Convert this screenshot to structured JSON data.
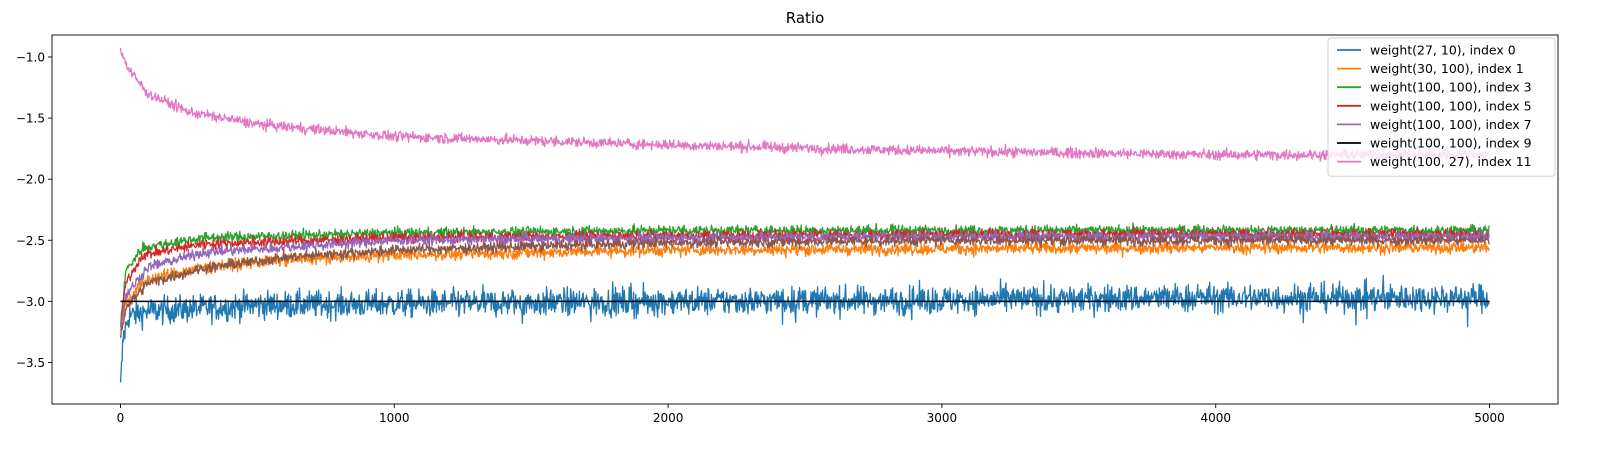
{
  "chart_data": {
    "type": "line",
    "title": "Ratio",
    "xlabel": "",
    "ylabel": "",
    "xlim": [
      -250,
      5250
    ],
    "ylim": [
      -3.84,
      -0.82
    ],
    "xticks": [
      0,
      1000,
      2000,
      3000,
      4000,
      5000
    ],
    "xtick_labels": [
      "0",
      "1000",
      "2000",
      "3000",
      "4000",
      "5000"
    ],
    "yticks": [
      -3.5,
      -3.0,
      -2.5,
      -2.0,
      -1.5,
      -1.0
    ],
    "ytick_labels": [
      "−3.5",
      "−3.0",
      "−2.5",
      "−2.0",
      "−1.5",
      "−1.0"
    ],
    "grid": false,
    "legend_position": "top-right",
    "n_points": 5000,
    "series": [
      {
        "name": "weight(27, 10), index 0",
        "color": "#1f77b4",
        "start": -3.72,
        "end": -2.97,
        "tau": 25,
        "noise": 0.08,
        "trend": [
          [
            0,
            -3.72
          ],
          [
            10,
            -3.3
          ],
          [
            30,
            -3.12
          ],
          [
            100,
            -3.08
          ],
          [
            500,
            -3.03
          ],
          [
            1000,
            -3.02
          ],
          [
            2000,
            -3.0
          ],
          [
            3000,
            -2.99
          ],
          [
            4000,
            -2.97
          ],
          [
            5000,
            -2.97
          ]
        ]
      },
      {
        "name": "weight(30, 100), index 1",
        "color": "#ff7f0e",
        "trend": [
          [
            0,
            -3.25
          ],
          [
            20,
            -3.0
          ],
          [
            100,
            -2.82
          ],
          [
            300,
            -2.72
          ],
          [
            600,
            -2.66
          ],
          [
            1000,
            -2.62
          ],
          [
            2000,
            -2.58
          ],
          [
            3000,
            -2.57
          ],
          [
            4000,
            -2.56
          ],
          [
            5000,
            -2.56
          ]
        ],
        "noise": 0.035
      },
      {
        "name": "weight(100, 100), index 3",
        "color": "#2ca02c",
        "trend": [
          [
            0,
            -3.2
          ],
          [
            20,
            -2.75
          ],
          [
            80,
            -2.56
          ],
          [
            300,
            -2.48
          ],
          [
            1000,
            -2.44
          ],
          [
            2000,
            -2.42
          ],
          [
            3000,
            -2.42
          ],
          [
            4000,
            -2.42
          ],
          [
            5000,
            -2.42
          ]
        ],
        "noise": 0.03
      },
      {
        "name": "weight(100, 100), index 5",
        "color": "#d62728",
        "trend": [
          [
            0,
            -3.2
          ],
          [
            20,
            -2.85
          ],
          [
            80,
            -2.62
          ],
          [
            300,
            -2.53
          ],
          [
            1000,
            -2.48
          ],
          [
            2000,
            -2.46
          ],
          [
            3000,
            -2.45
          ],
          [
            4000,
            -2.45
          ],
          [
            5000,
            -2.45
          ]
        ],
        "noise": 0.03
      },
      {
        "name": "weight(100, 100), index 7",
        "color": "#9467bd",
        "trend": [
          [
            0,
            -3.22
          ],
          [
            20,
            -2.95
          ],
          [
            100,
            -2.72
          ],
          [
            300,
            -2.6
          ],
          [
            1000,
            -2.5
          ],
          [
            2000,
            -2.48
          ],
          [
            3000,
            -2.47
          ],
          [
            4000,
            -2.47
          ],
          [
            5000,
            -2.47
          ]
        ],
        "noise": 0.03
      },
      {
        "name": "weight(100, 100), index 9",
        "color": "#8c564b",
        "trend": [
          [
            0,
            -3.28
          ],
          [
            20,
            -3.05
          ],
          [
            100,
            -2.85
          ],
          [
            300,
            -2.73
          ],
          [
            600,
            -2.64
          ],
          [
            1000,
            -2.58
          ],
          [
            2000,
            -2.52
          ],
          [
            3000,
            -2.5
          ],
          [
            4000,
            -2.5
          ],
          [
            5000,
            -2.5
          ]
        ],
        "noise": 0.03
      },
      {
        "name": "weight(100, 27), index 11",
        "color": "#e377c2",
        "trend": [
          [
            0,
            -0.95
          ],
          [
            30,
            -1.1
          ],
          [
            100,
            -1.3
          ],
          [
            250,
            -1.45
          ],
          [
            500,
            -1.55
          ],
          [
            1000,
            -1.65
          ],
          [
            2000,
            -1.72
          ],
          [
            3000,
            -1.77
          ],
          [
            4000,
            -1.8
          ],
          [
            5000,
            -1.8
          ]
        ],
        "noise": 0.03
      }
    ],
    "reference_line": {
      "y": -3.0,
      "x": [
        0,
        5000
      ],
      "color": "#000000"
    }
  }
}
